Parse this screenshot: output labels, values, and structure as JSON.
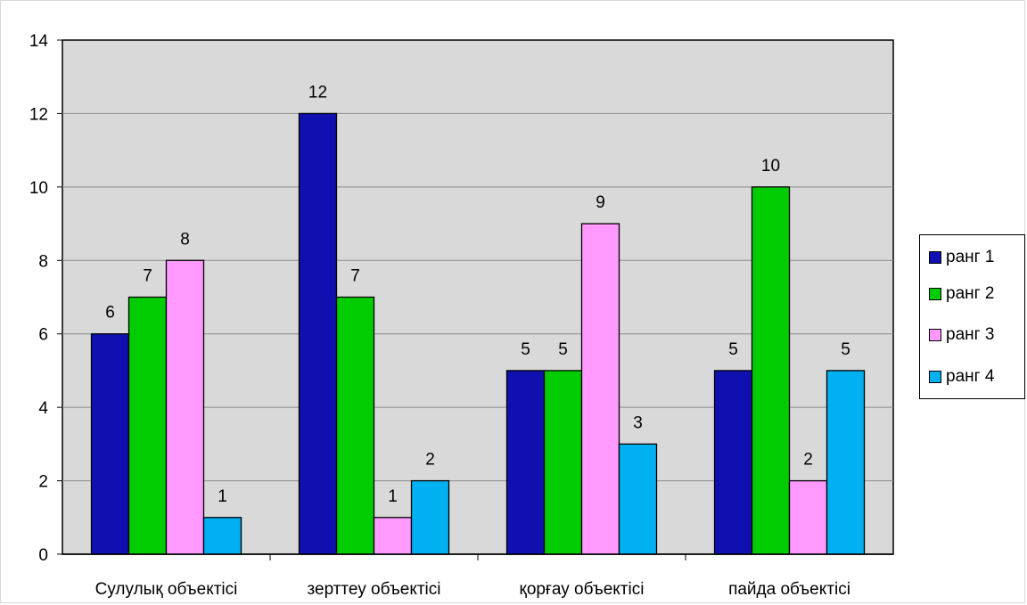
{
  "chart_data": {
    "type": "bar",
    "categories": [
      "Сулулық объектісі",
      "зерттеу объектісі",
      "қорғау объектісі",
      "пайда объектісі"
    ],
    "series": [
      {
        "name": "ранг 1",
        "color": "#1010b0",
        "values": [
          6,
          12,
          5,
          5
        ]
      },
      {
        "name": "ранг 2",
        "color": "#00cc00",
        "values": [
          7,
          7,
          5,
          10
        ]
      },
      {
        "name": "ранг 3",
        "color": "#ff99ff",
        "values": [
          8,
          1,
          9,
          2
        ]
      },
      {
        "name": "ранг 4",
        "color": "#00b0f0",
        "values": [
          1,
          2,
          3,
          5
        ]
      }
    ],
    "y_ticks": [
      "0",
      "2",
      "4",
      "6",
      "8",
      "10",
      "12",
      "14"
    ],
    "ylim": [
      0,
      14
    ],
    "grid": true,
    "plot_background": "#d9d9d9",
    "legend_position": "right"
  }
}
